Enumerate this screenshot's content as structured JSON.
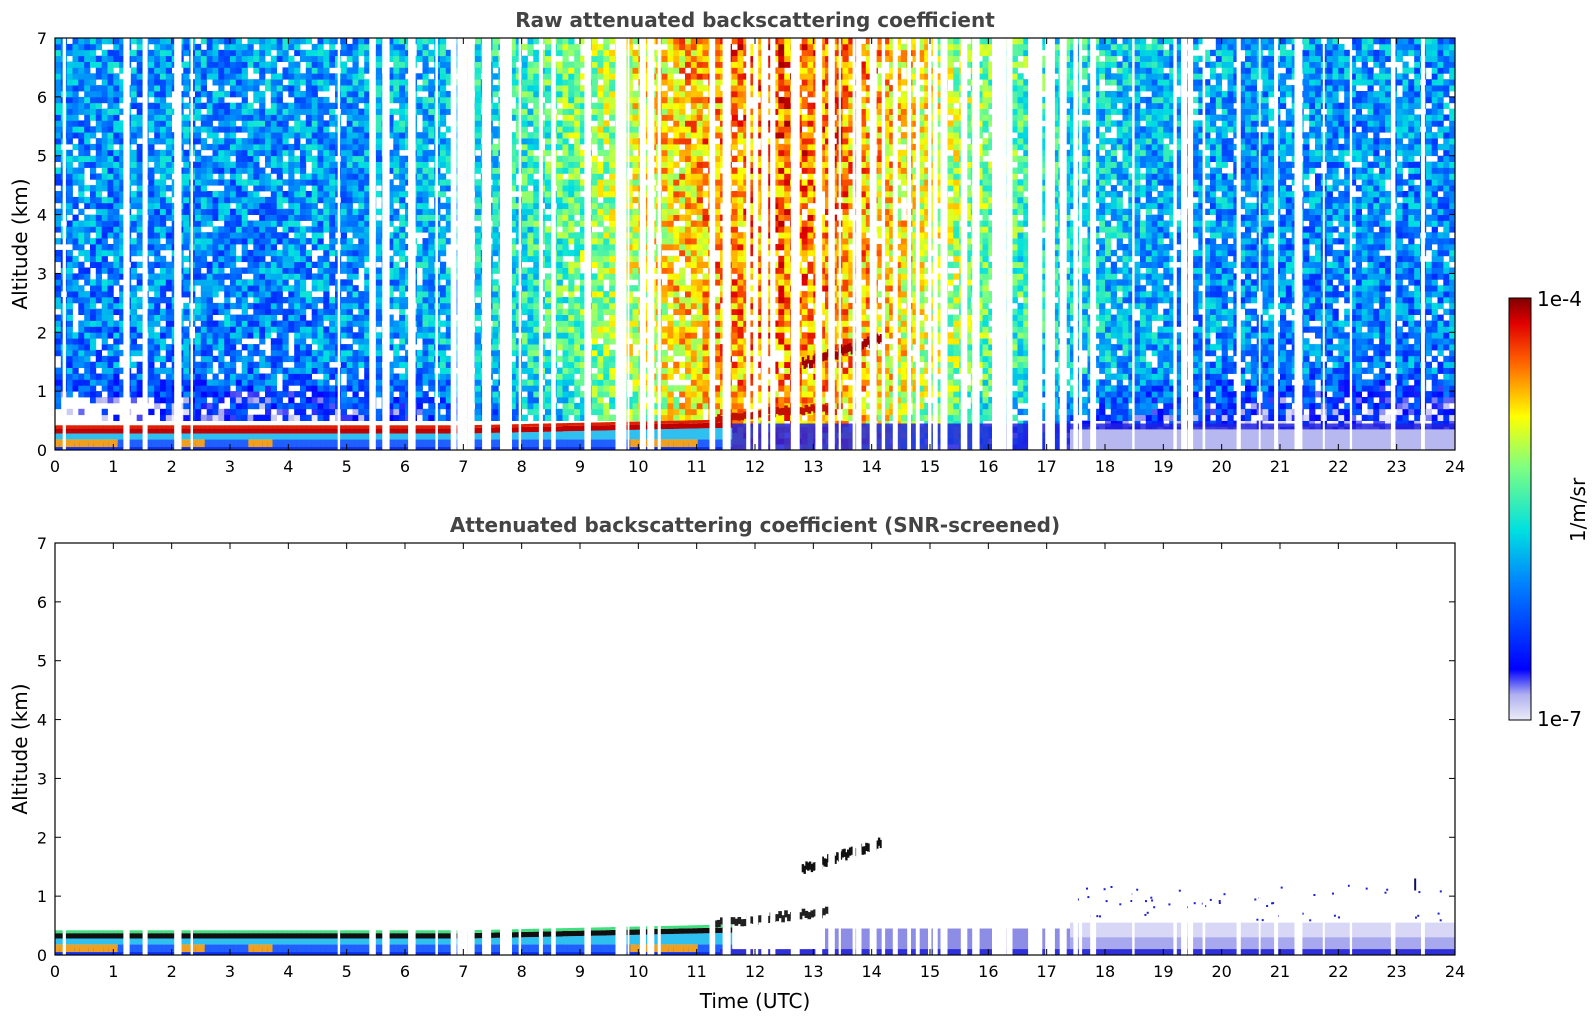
{
  "chart_data": [
    {
      "type": "heatmap",
      "title": "Raw attenuated backscattering coefficient",
      "xlabel": "",
      "ylabel": "Altitude (km)",
      "xlim": [
        0,
        24
      ],
      "ylim": [
        0,
        7
      ],
      "xticks": [
        "0",
        "1",
        "2",
        "3",
        "4",
        "5",
        "6",
        "7",
        "8",
        "9",
        "10",
        "11",
        "12",
        "13",
        "14",
        "15",
        "16",
        "17",
        "18",
        "19",
        "20",
        "21",
        "22",
        "23",
        "24"
      ],
      "yticks": [
        "0",
        "1",
        "2",
        "3",
        "4",
        "5",
        "6",
        "7"
      ],
      "features": [
        {
          "name": "boundary layer",
          "x": [
            0,
            11.6
          ],
          "y_top": [
            0.45,
            0.5
          ]
        },
        {
          "name": "elevated cloud layer",
          "x": [
            11.3,
            13.3
          ],
          "y": [
            0.5,
            0.75
          ]
        },
        {
          "name": "ascending plume",
          "x": [
            12.8,
            14.2
          ],
          "y": [
            1.4,
            1.95
          ]
        }
      ]
    },
    {
      "type": "heatmap",
      "title": "Attenuated backscattering coefficient (SNR-screened)",
      "xlabel": "Time (UTC)",
      "ylabel": "Altitude (km)",
      "xlim": [
        0,
        24
      ],
      "ylim": [
        0,
        7
      ],
      "xticks": [
        "0",
        "1",
        "2",
        "3",
        "4",
        "5",
        "6",
        "7",
        "8",
        "9",
        "10",
        "11",
        "12",
        "13",
        "14",
        "15",
        "16",
        "17",
        "18",
        "19",
        "20",
        "21",
        "22",
        "23",
        "24"
      ],
      "yticks": [
        "0",
        "1",
        "2",
        "3",
        "4",
        "5",
        "6",
        "7"
      ]
    }
  ],
  "colorbar": {
    "max_label": "1e-4",
    "min_label": "1e-7",
    "unit_label": "1/m/sr",
    "colormap": "jet",
    "low_color": "#e8e8f8",
    "high_color": "#800000"
  }
}
